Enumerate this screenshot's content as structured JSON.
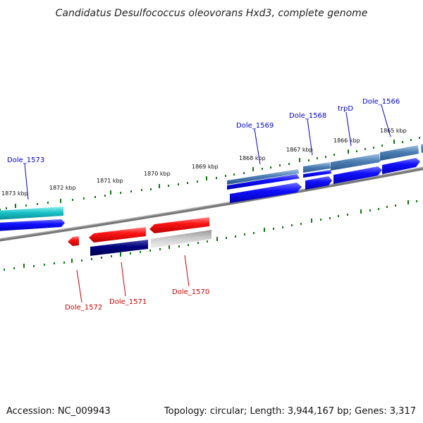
{
  "title": "Candidatus Desulfococcus oleovorans Hxd3, complete genome",
  "footer": {
    "accession": "Accession: NC_009943",
    "summary": "Topology: circular; Length: 3,944,167 bp; Genes: 3,317"
  },
  "scale_labels": [
    "1873 kbp",
    "1872 kbp",
    "1871 kbp",
    "1870 kbp",
    "1869 kbp",
    "1868 kbp",
    "1867 kbp",
    "1866 kbp",
    "1865 kbp"
  ],
  "genes_top": [
    "Dole_1573",
    "Dole_1569",
    "Dole_1568",
    "trpD",
    "Dole_1566"
  ],
  "genes_bottom": [
    "Dole_1572",
    "Dole_1571",
    "Dole_1570"
  ],
  "colors": {
    "forward_label": "#0000cc",
    "reverse_label": "#cc0000",
    "tick": "#117711",
    "backbone": "#888888"
  }
}
